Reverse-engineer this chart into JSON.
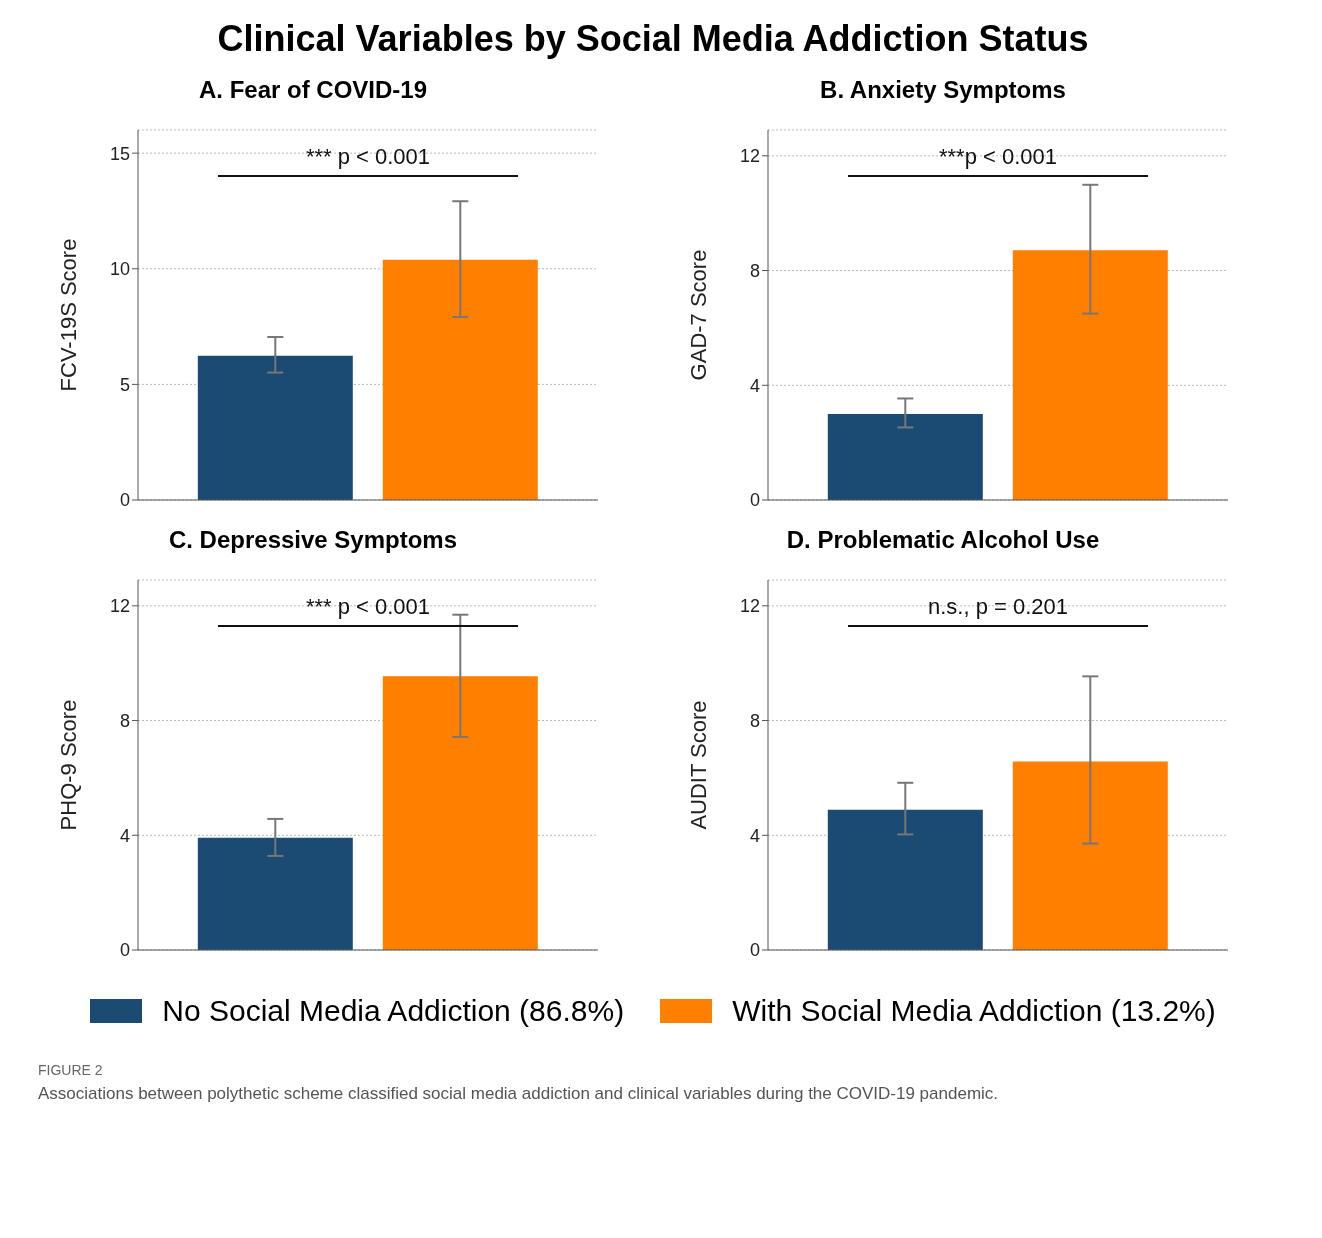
{
  "chart_data": [
    {
      "type": "other",
      "title": "Clinical Variables by Social Media Addiction Status"
    },
    {
      "type": "bar",
      "title": "A. Fear of COVID-19",
      "ylabel": "FCV-19S Score",
      "categories": [
        null
      ],
      "ylim": [
        0,
        16
      ],
      "yticks": [
        0,
        5,
        10,
        15
      ],
      "grid": "y",
      "legend": "bottom",
      "annotations": [
        "*** p < 0.001"
      ],
      "series": [
        {
          "name": "No Social Media Addiction (86.8%)",
          "color": "#1b4a73",
          "values": [
            6.24
          ],
          "errors": [
            [
              5.51,
              7.05
            ]
          ]
        },
        {
          "name": "With Social Media Addiction (13.2%)",
          "color": "#ff7f00",
          "values": [
            10.39
          ],
          "errors": [
            [
              7.91,
              12.92
            ]
          ]
        }
      ]
    },
    {
      "type": "bar",
      "title": "B. Anxiety Symptoms",
      "ylabel": "GAD-7 Score",
      "categories": [
        null
      ],
      "ylim": [
        0,
        12.9
      ],
      "yticks": [
        0,
        4,
        8,
        12
      ],
      "grid": "y",
      "annotations": [
        "***p < 0.001"
      ],
      "series": [
        {
          "color": "#1b4a73",
          "values": [
            3.0
          ],
          "errors": [
            [
              2.53,
              3.54
            ]
          ]
        },
        {
          "color": "#ff7f00",
          "values": [
            8.71
          ],
          "errors": [
            [
              6.5,
              10.99
            ]
          ]
        }
      ]
    },
    {
      "type": "bar",
      "title": "C. Depressive Symptoms",
      "ylabel": "PHQ-9 Score",
      "categories": [
        null
      ],
      "ylim": [
        0,
        12.9
      ],
      "yticks": [
        0,
        4,
        8,
        12
      ],
      "grid": "y",
      "annotations": [
        "*** p < 0.001"
      ],
      "series": [
        {
          "color": "#1b4a73",
          "values": [
            3.91
          ],
          "errors": [
            [
              3.28,
              4.57
            ]
          ]
        },
        {
          "color": "#ff7f00",
          "values": [
            9.54
          ],
          "errors": [
            [
              7.43,
              11.69
            ]
          ]
        }
      ]
    },
    {
      "type": "bar",
      "title": "D. Problematic Alcohol Use",
      "ylabel": "AUDIT Score",
      "categories": [
        null
      ],
      "ylim": [
        0,
        12.9
      ],
      "yticks": [
        0,
        4,
        8,
        12
      ],
      "grid": "y",
      "annotations": [
        "n.s., p = 0.201"
      ],
      "series": [
        {
          "color": "#1b4a73",
          "values": [
            4.89
          ],
          "errors": [
            [
              4.03,
              5.83
            ]
          ]
        },
        {
          "color": "#ff7f00",
          "values": [
            6.57
          ],
          "errors": [
            [
              3.71,
              9.54
            ]
          ]
        }
      ]
    },
    {
      "type": "other",
      "title": "FIGURE 2",
      "annotations": [
        "Associations between polythetic scheme classified social media addiction and clinical variables during the COVID-19 pandemic."
      ]
    }
  ]
}
